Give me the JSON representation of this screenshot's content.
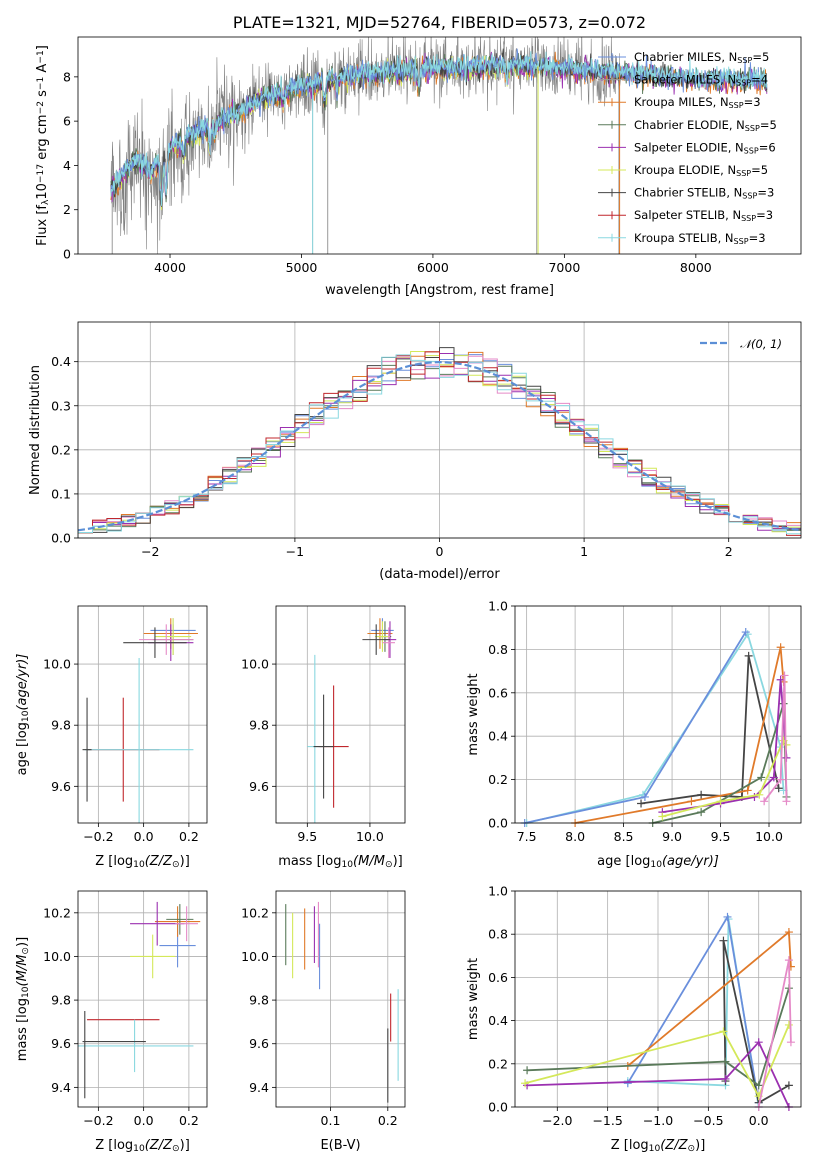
{
  "colors": {
    "c0": "#6a8fdc",
    "c1": "#9a9a9a",
    "c2": "#e07a2a",
    "c3": "#5a7a5a",
    "c4": "#9b30b0",
    "c5": "#d4e85a",
    "c6": "#444444",
    "c7": "#c0272d",
    "c8": "#8ad8e0",
    "pink": "#e58ac8",
    "gauss": "#5b8fd6",
    "spectrum": "#808080"
  },
  "chart_data": [
    {
      "id": "spectrum",
      "type": "line",
      "title": "PLATE=1321, MJD=52764, FIBERID=0573, z=0.072",
      "xlabel": "wavelength [Angstrom, rest frame]",
      "ylabel_parts": [
        "Flux [f",
        "λ",
        "10",
        "−17",
        " erg cm",
        "−2",
        " s",
        "−1",
        " A",
        "−1",
        "]"
      ],
      "xlim": [
        3300,
        8800
      ],
      "ylim": [
        0,
        9.8
      ],
      "xticks": [
        4000,
        5000,
        6000,
        7000,
        8000
      ],
      "yticks": [
        0,
        2,
        4,
        6,
        8
      ],
      "grid": false,
      "legend_position": "right",
      "legend": [
        {
          "label": "Chabrier MILES, N",
          "sub": "SSP",
          "val": "=5",
          "color": "c0"
        },
        {
          "label": "Salpeter MILES, N",
          "sub": "SSP",
          "val": "=4",
          "color": "c1"
        },
        {
          "label": "Kroupa MILES, N",
          "sub": "SSP",
          "val": "=3",
          "color": "c2"
        },
        {
          "label": "Chabrier ELODIE, N",
          "sub": "SSP",
          "val": "=5",
          "color": "c3"
        },
        {
          "label": "Salpeter ELODIE, N",
          "sub": "SSP",
          "val": "=6",
          "color": "c4"
        },
        {
          "label": "Kroupa ELODIE, N",
          "sub": "SSP",
          "val": "=5",
          "color": "c5"
        },
        {
          "label": "Chabrier STELIB, N",
          "sub": "SSP",
          "val": "=3",
          "color": "c6"
        },
        {
          "label": "Salpeter STELIB, N",
          "sub": "SSP",
          "val": "=3",
          "color": "c7"
        },
        {
          "label": "Kroupa STELIB, N",
          "sub": "SSP",
          "val": "=3",
          "color": "c8"
        }
      ],
      "model_continuum": {
        "x": [
          3550,
          3650,
          3750,
          3850,
          3950,
          4050,
          4150,
          4300,
          4500,
          4700,
          4900,
          5100,
          5300,
          5600,
          5900,
          6200,
          6500,
          6800,
          7100,
          7400,
          7700,
          8000,
          8300,
          8600
        ],
        "y": [
          2.9,
          3.6,
          4.3,
          3.7,
          4.4,
          5.0,
          5.3,
          5.8,
          6.4,
          7.0,
          7.4,
          7.7,
          8.0,
          8.2,
          8.35,
          8.4,
          8.55,
          8.5,
          8.3,
          8.2,
          8.05,
          7.9,
          7.85,
          7.8
        ]
      }
    },
    {
      "id": "residuals",
      "type": "step",
      "xlabel": "(data-model)/error",
      "ylabel": "Normed distribution",
      "xlim": [
        -2.5,
        2.5
      ],
      "ylim": [
        0,
        0.49
      ],
      "xticks": [
        -2,
        -1,
        0,
        1,
        2
      ],
      "xtick_labels": [
        "−2",
        "−1",
        "0",
        "1",
        "2"
      ],
      "yticks": [
        0.0,
        0.1,
        0.2,
        0.3,
        0.4
      ],
      "ytick_labels": [
        "0.0",
        "0.1",
        "0.2",
        "0.3",
        "0.4"
      ],
      "grid": true,
      "legend": [
        {
          "label": "𝒩(0, 1)",
          "style": "dashed",
          "color": "gauss"
        }
      ],
      "legend_position": "top-right",
      "bin_width": 0.1,
      "seeds": [
        3,
        7,
        11,
        17,
        23,
        29,
        31,
        41,
        47
      ],
      "noise": 0.028
    },
    {
      "id": "age_vs_Z",
      "type": "errorbar",
      "xlabel_parts": [
        "Z [log",
        "10",
        "(Z/Z",
        "⊙",
        ")]"
      ],
      "ylabel_parts": [
        "age  [log",
        "10",
        "(age/yr)]"
      ],
      "xlim": [
        -0.29,
        0.28
      ],
      "ylim": [
        9.48,
        10.19
      ],
      "xticks": [
        -0.2,
        0.0,
        0.2
      ],
      "xtick_labels": [
        "−0.2",
        "0.0",
        "0.2"
      ],
      "yticks": [
        9.6,
        9.8,
        10.0
      ],
      "ytick_labels": [
        "9.6",
        "9.8",
        "10.0"
      ],
      "grid": true,
      "points": [
        {
          "x": 0.13,
          "y": 10.11,
          "xerr": 0.1,
          "yerr": 0.04,
          "color": "c0"
        },
        {
          "x": 0.12,
          "y": 10.1,
          "xerr": 0.12,
          "yerr": 0.05,
          "color": "c2"
        },
        {
          "x": 0.13,
          "y": 10.08,
          "xerr": 0.09,
          "yerr": 0.05,
          "color": "c3"
        },
        {
          "x": 0.12,
          "y": 10.07,
          "xerr": 0.1,
          "yerr": 0.06,
          "color": "c4"
        },
        {
          "x": 0.13,
          "y": 10.09,
          "xerr": 0.08,
          "yerr": 0.06,
          "color": "c5"
        },
        {
          "x": 0.1,
          "y": 10.08,
          "xerr": 0.12,
          "yerr": 0.05,
          "color": "pink"
        },
        {
          "x": 0.05,
          "y": 10.07,
          "xerr": 0.14,
          "yerr": 0.05,
          "color": "c6"
        },
        {
          "x": -0.09,
          "y": 9.72,
          "xerr": 0.16,
          "yerr": 0.17,
          "color": "c7"
        },
        {
          "x": -0.02,
          "y": 9.72,
          "xerr": 0.24,
          "yerr": 0.3,
          "color": "c8"
        },
        {
          "x": -0.25,
          "y": 9.72,
          "xerr": 0.02,
          "yerr": 0.17,
          "color": "c6"
        }
      ]
    },
    {
      "id": "age_vs_mass",
      "type": "errorbar",
      "xlabel_parts": [
        "mass [log",
        "10",
        "(M/M",
        "⊙",
        ")]"
      ],
      "xlim": [
        9.25,
        10.28
      ],
      "ylim": [
        9.48,
        10.19
      ],
      "xticks": [
        9.5,
        10.0
      ],
      "xtick_labels": [
        "9.5",
        "10.0"
      ],
      "yticks": [
        9.6,
        9.8,
        10.0
      ],
      "ytick_labels": [
        "9.6",
        "9.8",
        "10.0"
      ],
      "grid": true,
      "points": [
        {
          "x": 10.1,
          "y": 10.11,
          "xerr": 0.09,
          "yerr": 0.04,
          "color": "c0"
        },
        {
          "x": 10.08,
          "y": 10.1,
          "xerr": 0.1,
          "yerr": 0.05,
          "color": "c2"
        },
        {
          "x": 10.12,
          "y": 10.09,
          "xerr": 0.05,
          "yerr": 0.05,
          "color": "c3"
        },
        {
          "x": 10.16,
          "y": 10.08,
          "xerr": 0.05,
          "yerr": 0.06,
          "color": "c4"
        },
        {
          "x": 10.1,
          "y": 10.09,
          "xerr": 0.06,
          "yerr": 0.05,
          "color": "c5"
        },
        {
          "x": 10.15,
          "y": 10.07,
          "xerr": 0.05,
          "yerr": 0.05,
          "color": "pink"
        },
        {
          "x": 10.05,
          "y": 10.08,
          "xerr": 0.11,
          "yerr": 0.05,
          "color": "c6"
        },
        {
          "x": 9.71,
          "y": 9.73,
          "xerr": 0.12,
          "yerr": 0.2,
          "color": "c7"
        },
        {
          "x": 9.56,
          "y": 9.73,
          "xerr": 0.06,
          "yerr": 0.3,
          "color": "c8"
        },
        {
          "x": 9.63,
          "y": 9.73,
          "xerr": 0.08,
          "yerr": 0.17,
          "color": "c6"
        }
      ]
    },
    {
      "id": "mass_weight_vs_age",
      "type": "line",
      "xlabel_parts": [
        "age  [log",
        "10",
        "(age/yr)]"
      ],
      "ylabel": "mass weight",
      "xlim": [
        7.38,
        10.33
      ],
      "ylim": [
        0,
        1.0
      ],
      "xticks": [
        7.5,
        8.0,
        8.5,
        9.0,
        9.5,
        10.0
      ],
      "xtick_labels": [
        "7.5",
        "8.0",
        "8.5",
        "9.0",
        "9.5",
        "10.0"
      ],
      "yticks": [
        0.0,
        0.2,
        0.4,
        0.6,
        0.8,
        1.0
      ],
      "ytick_labels": [
        "0.0",
        "0.2",
        "0.4",
        "0.6",
        "0.8",
        "1.0"
      ],
      "grid": true,
      "series": [
        {
          "color": "c8",
          "x": [
            7.5,
            8.7,
            9.78,
            10.12,
            10.15
          ],
          "y": [
            0.0,
            0.13,
            0.87,
            0.35,
            0.15
          ]
        },
        {
          "color": "c0",
          "x": [
            7.48,
            8.72,
            9.76
          ],
          "y": [
            0.0,
            0.12,
            0.88
          ]
        },
        {
          "color": "c6",
          "x": [
            8.68,
            9.3,
            9.72,
            9.79,
            10.1
          ],
          "y": [
            0.09,
            0.13,
            0.12,
            0.77,
            0.16
          ]
        },
        {
          "color": "c2",
          "x": [
            8.0,
            9.2,
            9.78,
            10.12,
            10.15
          ],
          "y": [
            0.0,
            0.1,
            0.15,
            0.81,
            0.65
          ]
        },
        {
          "color": "c3",
          "x": [
            8.8,
            9.3,
            9.92,
            10.15,
            10.18
          ],
          "y": [
            0.0,
            0.05,
            0.21,
            0.55,
            0.12
          ]
        },
        {
          "color": "c4",
          "x": [
            8.9,
            9.5,
            9.85,
            10.05,
            10.12,
            10.18
          ],
          "y": [
            0.05,
            0.09,
            0.12,
            0.21,
            0.66,
            0.3
          ]
        },
        {
          "color": "c5",
          "x": [
            8.9,
            9.5,
            9.9,
            10.15,
            10.18
          ],
          "y": [
            0.03,
            0.1,
            0.13,
            0.38,
            0.36
          ]
        },
        {
          "color": "pink",
          "x": [
            9.95,
            10.12,
            10.16,
            10.18
          ],
          "y": [
            0.1,
            0.2,
            0.68,
            0.1
          ]
        }
      ]
    },
    {
      "id": "mass_vs_Z",
      "type": "errorbar",
      "xlabel_parts": [
        "Z [log",
        "10",
        "(Z/Z",
        "⊙",
        ")]"
      ],
      "ylabel_parts": [
        "mass [log",
        "10",
        "(M/M",
        "⊙",
        ")]"
      ],
      "xlim": [
        -0.29,
        0.28
      ],
      "ylim": [
        9.31,
        10.3
      ],
      "xticks": [
        -0.2,
        0.0,
        0.2
      ],
      "xtick_labels": [
        "−0.2",
        "0.0",
        "0.2"
      ],
      "yticks": [
        9.4,
        9.6,
        9.8,
        10.0,
        10.2
      ],
      "ytick_labels": [
        "9.4",
        "9.6",
        "9.8",
        "10.0",
        "10.2"
      ],
      "grid": true,
      "points": [
        {
          "x": 0.15,
          "y": 10.05,
          "xerr": 0.08,
          "yerr": 0.1,
          "color": "c0"
        },
        {
          "x": 0.15,
          "y": 10.16,
          "xerr": 0.1,
          "yerr": 0.07,
          "color": "c2"
        },
        {
          "x": 0.16,
          "y": 10.17,
          "xerr": 0.06,
          "yerr": 0.07,
          "color": "c3"
        },
        {
          "x": 0.06,
          "y": 10.15,
          "xerr": 0.12,
          "yerr": 0.1,
          "color": "c4"
        },
        {
          "x": 0.04,
          "y": 10.0,
          "xerr": 0.1,
          "yerr": 0.1,
          "color": "c5"
        },
        {
          "x": 0.19,
          "y": 10.15,
          "xerr": 0.05,
          "yerr": 0.08,
          "color": "pink"
        },
        {
          "x": -0.09,
          "y": 9.71,
          "xerr": 0.16,
          "yerr": 0.0,
          "color": "c7"
        },
        {
          "x": -0.04,
          "y": 9.59,
          "xerr": 0.26,
          "yerr": 0.12,
          "color": "c8"
        },
        {
          "x": -0.13,
          "y": 9.61,
          "xerr": 0.14,
          "yerr": 0.0,
          "color": "c6"
        },
        {
          "x": -0.26,
          "y": 9.55,
          "xerr": 0.0,
          "yerr": 0.2,
          "color": "c6"
        }
      ]
    },
    {
      "id": "mass_vs_EBV",
      "type": "errorbar",
      "xlabel": "E(B-V)",
      "xlim": [
        0.005,
        0.23
      ],
      "ylim": [
        9.31,
        10.3
      ],
      "xticks": [
        0.1,
        0.2
      ],
      "xtick_labels": [
        "0.1",
        "0.2"
      ],
      "yticks": [
        9.4,
        9.6,
        9.8,
        10.0,
        10.2
      ],
      "ytick_labels": [
        "9.4",
        "9.6",
        "9.8",
        "10.0",
        "10.2"
      ],
      "grid": true,
      "points": [
        {
          "x": 0.081,
          "y": 10.0,
          "xerr": 0.0,
          "yerr": 0.15,
          "color": "c0"
        },
        {
          "x": 0.055,
          "y": 10.08,
          "xerr": 0.0,
          "yerr": 0.14,
          "color": "c2"
        },
        {
          "x": 0.022,
          "y": 10.1,
          "xerr": 0.0,
          "yerr": 0.14,
          "color": "c3"
        },
        {
          "x": 0.072,
          "y": 10.1,
          "xerr": 0.0,
          "yerr": 0.13,
          "color": "c4"
        },
        {
          "x": 0.034,
          "y": 10.05,
          "xerr": 0.0,
          "yerr": 0.15,
          "color": "c5"
        },
        {
          "x": 0.079,
          "y": 10.1,
          "xerr": 0.0,
          "yerr": 0.15,
          "color": "pink"
        },
        {
          "x": 0.205,
          "y": 9.72,
          "xerr": 0.0,
          "yerr": 0.11,
          "color": "c7"
        },
        {
          "x": 0.218,
          "y": 9.64,
          "xerr": 0.0,
          "yerr": 0.21,
          "color": "c8"
        },
        {
          "x": 0.2,
          "y": 9.5,
          "xerr": 0.0,
          "yerr": 0.17,
          "color": "c6"
        }
      ]
    },
    {
      "id": "mass_weight_vs_Z",
      "type": "line",
      "xlabel_parts": [
        "Z [log",
        "10",
        "(Z/Z",
        "⊙",
        ")]"
      ],
      "ylabel": "mass weight",
      "xlim": [
        -2.42,
        0.42
      ],
      "ylim": [
        0,
        1.0
      ],
      "xticks": [
        -2.0,
        -1.5,
        -1.0,
        -0.5,
        0.0
      ],
      "xtick_labels": [
        "−2.0",
        "−1.5",
        "−1.0",
        "−0.5",
        "0.0"
      ],
      "yticks": [
        0.0,
        0.2,
        0.4,
        0.6,
        0.8,
        1.0
      ],
      "ytick_labels": [
        "0.0",
        "0.2",
        "0.4",
        "0.6",
        "0.8",
        "1.0"
      ],
      "grid": true,
      "series": [
        {
          "color": "c8",
          "x": [
            -1.3,
            -0.33,
            -0.3,
            0.0
          ],
          "y": [
            0.12,
            0.1,
            0.87,
            0.0
          ]
        },
        {
          "color": "c0",
          "x": [
            -1.3,
            -0.31,
            0.0
          ],
          "y": [
            0.11,
            0.88,
            0.02
          ]
        },
        {
          "color": "c6",
          "x": [
            -0.33,
            -0.35,
            0.0,
            0.3
          ],
          "y": [
            0.12,
            0.77,
            0.02,
            0.1
          ]
        },
        {
          "color": "c2",
          "x": [
            -1.3,
            0.3,
            0.32
          ],
          "y": [
            0.19,
            0.81,
            0.65
          ]
        },
        {
          "color": "c3",
          "x": [
            -2.3,
            -0.33,
            0.0,
            0.3
          ],
          "y": [
            0.17,
            0.21,
            0.1,
            0.55
          ]
        },
        {
          "color": "c4",
          "x": [
            -2.3,
            -0.33,
            0.0,
            0.3
          ],
          "y": [
            0.1,
            0.13,
            0.3,
            0.0
          ]
        },
        {
          "color": "c5",
          "x": [
            -2.32,
            -0.35,
            0.0,
            0.3
          ],
          "y": [
            0.11,
            0.35,
            0.05,
            0.38
          ]
        },
        {
          "color": "pink",
          "x": [
            0.0,
            0.3,
            0.32
          ],
          "y": [
            0.0,
            0.68,
            0.3
          ]
        }
      ]
    }
  ]
}
